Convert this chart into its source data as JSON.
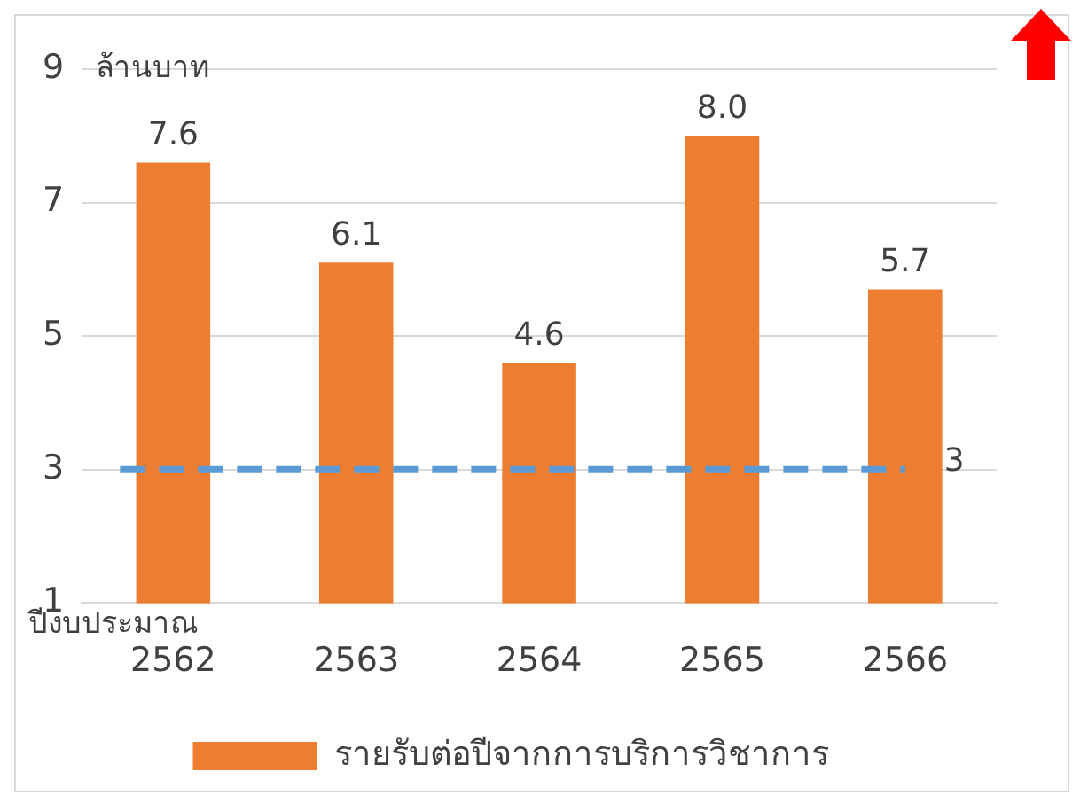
{
  "chart_data": {
    "type": "bar",
    "ylabel": "ล้านบาท",
    "xlabel": "ปีงบประมาณ",
    "categories": [
      "2562",
      "2563",
      "2564",
      "2565",
      "2566"
    ],
    "series": [
      {
        "name": "รายรับต่อปีจากการบริการวิชาการ",
        "color": "#ed7d31",
        "values": [
          7.6,
          6.1,
          4.6,
          8.0,
          5.7
        ],
        "value_labels": [
          "7.6",
          "6.1",
          "4.6",
          "8.0",
          "5.7"
        ]
      }
    ],
    "ylim": [
      1,
      9
    ],
    "yticks": [
      1,
      3,
      5,
      7,
      9
    ],
    "grid": "y",
    "legend": "bottom",
    "ref_lines": [
      {
        "axis": "y",
        "value": 3,
        "label": "3",
        "color": "#5b9bd5",
        "line_style": "dashed"
      }
    ]
  }
}
